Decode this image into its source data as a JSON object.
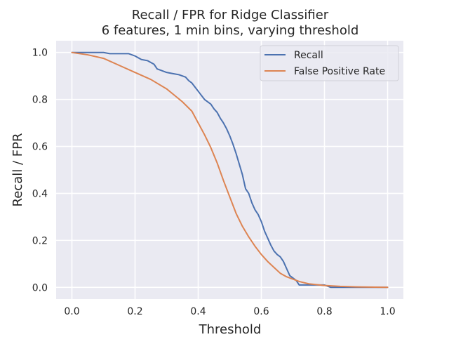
{
  "chart_data": {
    "type": "line",
    "title": "Recall / FPR for Ridge Classifier",
    "subtitle": "6 features, 1 min bins, varying threshold",
    "xlabel": "Threshold",
    "ylabel": "Recall / FPR",
    "xlim": [
      -0.05,
      1.05
    ],
    "ylim": [
      -0.05,
      1.05
    ],
    "xticks": [
      0.0,
      0.2,
      0.4,
      0.6,
      0.8,
      1.0
    ],
    "xtick_labels": [
      "0.0",
      "0.2",
      "0.4",
      "0.6",
      "0.8",
      "1.0"
    ],
    "yticks": [
      0.0,
      0.2,
      0.4,
      0.6,
      0.8,
      1.0
    ],
    "ytick_labels": [
      "0.0",
      "0.2",
      "0.4",
      "0.6",
      "0.8",
      "1.0"
    ],
    "grid": true,
    "legend_position": "top-right",
    "background_color": "#EAEAF2",
    "series": [
      {
        "name": "Recall",
        "color": "#4C72B0",
        "x": [
          0.0,
          0.05,
          0.1,
          0.12,
          0.15,
          0.18,
          0.2,
          0.22,
          0.24,
          0.26,
          0.27,
          0.28,
          0.3,
          0.32,
          0.34,
          0.36,
          0.37,
          0.38,
          0.4,
          0.42,
          0.44,
          0.45,
          0.46,
          0.47,
          0.48,
          0.49,
          0.5,
          0.51,
          0.52,
          0.53,
          0.54,
          0.55,
          0.56,
          0.57,
          0.58,
          0.59,
          0.6,
          0.61,
          0.62,
          0.63,
          0.64,
          0.65,
          0.66,
          0.67,
          0.68,
          0.69,
          0.7,
          0.71,
          0.72,
          0.75,
          0.8,
          0.82,
          0.85,
          0.9,
          1.0
        ],
        "y": [
          1.0,
          1.0,
          1.0,
          0.995,
          0.995,
          0.995,
          0.985,
          0.97,
          0.965,
          0.95,
          0.93,
          0.925,
          0.915,
          0.91,
          0.905,
          0.895,
          0.88,
          0.87,
          0.835,
          0.8,
          0.78,
          0.76,
          0.745,
          0.72,
          0.7,
          0.675,
          0.645,
          0.61,
          0.57,
          0.525,
          0.48,
          0.42,
          0.4,
          0.36,
          0.33,
          0.31,
          0.28,
          0.24,
          0.21,
          0.18,
          0.155,
          0.14,
          0.13,
          0.11,
          0.08,
          0.05,
          0.04,
          0.03,
          0.01,
          0.01,
          0.01,
          0.0,
          0.0,
          0.0,
          0.0
        ]
      },
      {
        "name": "False Positive Rate",
        "color": "#DD8452",
        "x": [
          0.0,
          0.05,
          0.1,
          0.15,
          0.2,
          0.25,
          0.3,
          0.35,
          0.38,
          0.4,
          0.42,
          0.44,
          0.46,
          0.48,
          0.5,
          0.52,
          0.54,
          0.56,
          0.58,
          0.6,
          0.62,
          0.64,
          0.66,
          0.68,
          0.7,
          0.72,
          0.75,
          0.8,
          0.85,
          0.9,
          1.0
        ],
        "y": [
          1.0,
          0.99,
          0.975,
          0.945,
          0.915,
          0.885,
          0.845,
          0.79,
          0.75,
          0.7,
          0.65,
          0.595,
          0.53,
          0.455,
          0.385,
          0.315,
          0.26,
          0.215,
          0.175,
          0.14,
          0.11,
          0.085,
          0.06,
          0.045,
          0.035,
          0.025,
          0.015,
          0.008,
          0.004,
          0.002,
          0.0
        ]
      }
    ]
  }
}
